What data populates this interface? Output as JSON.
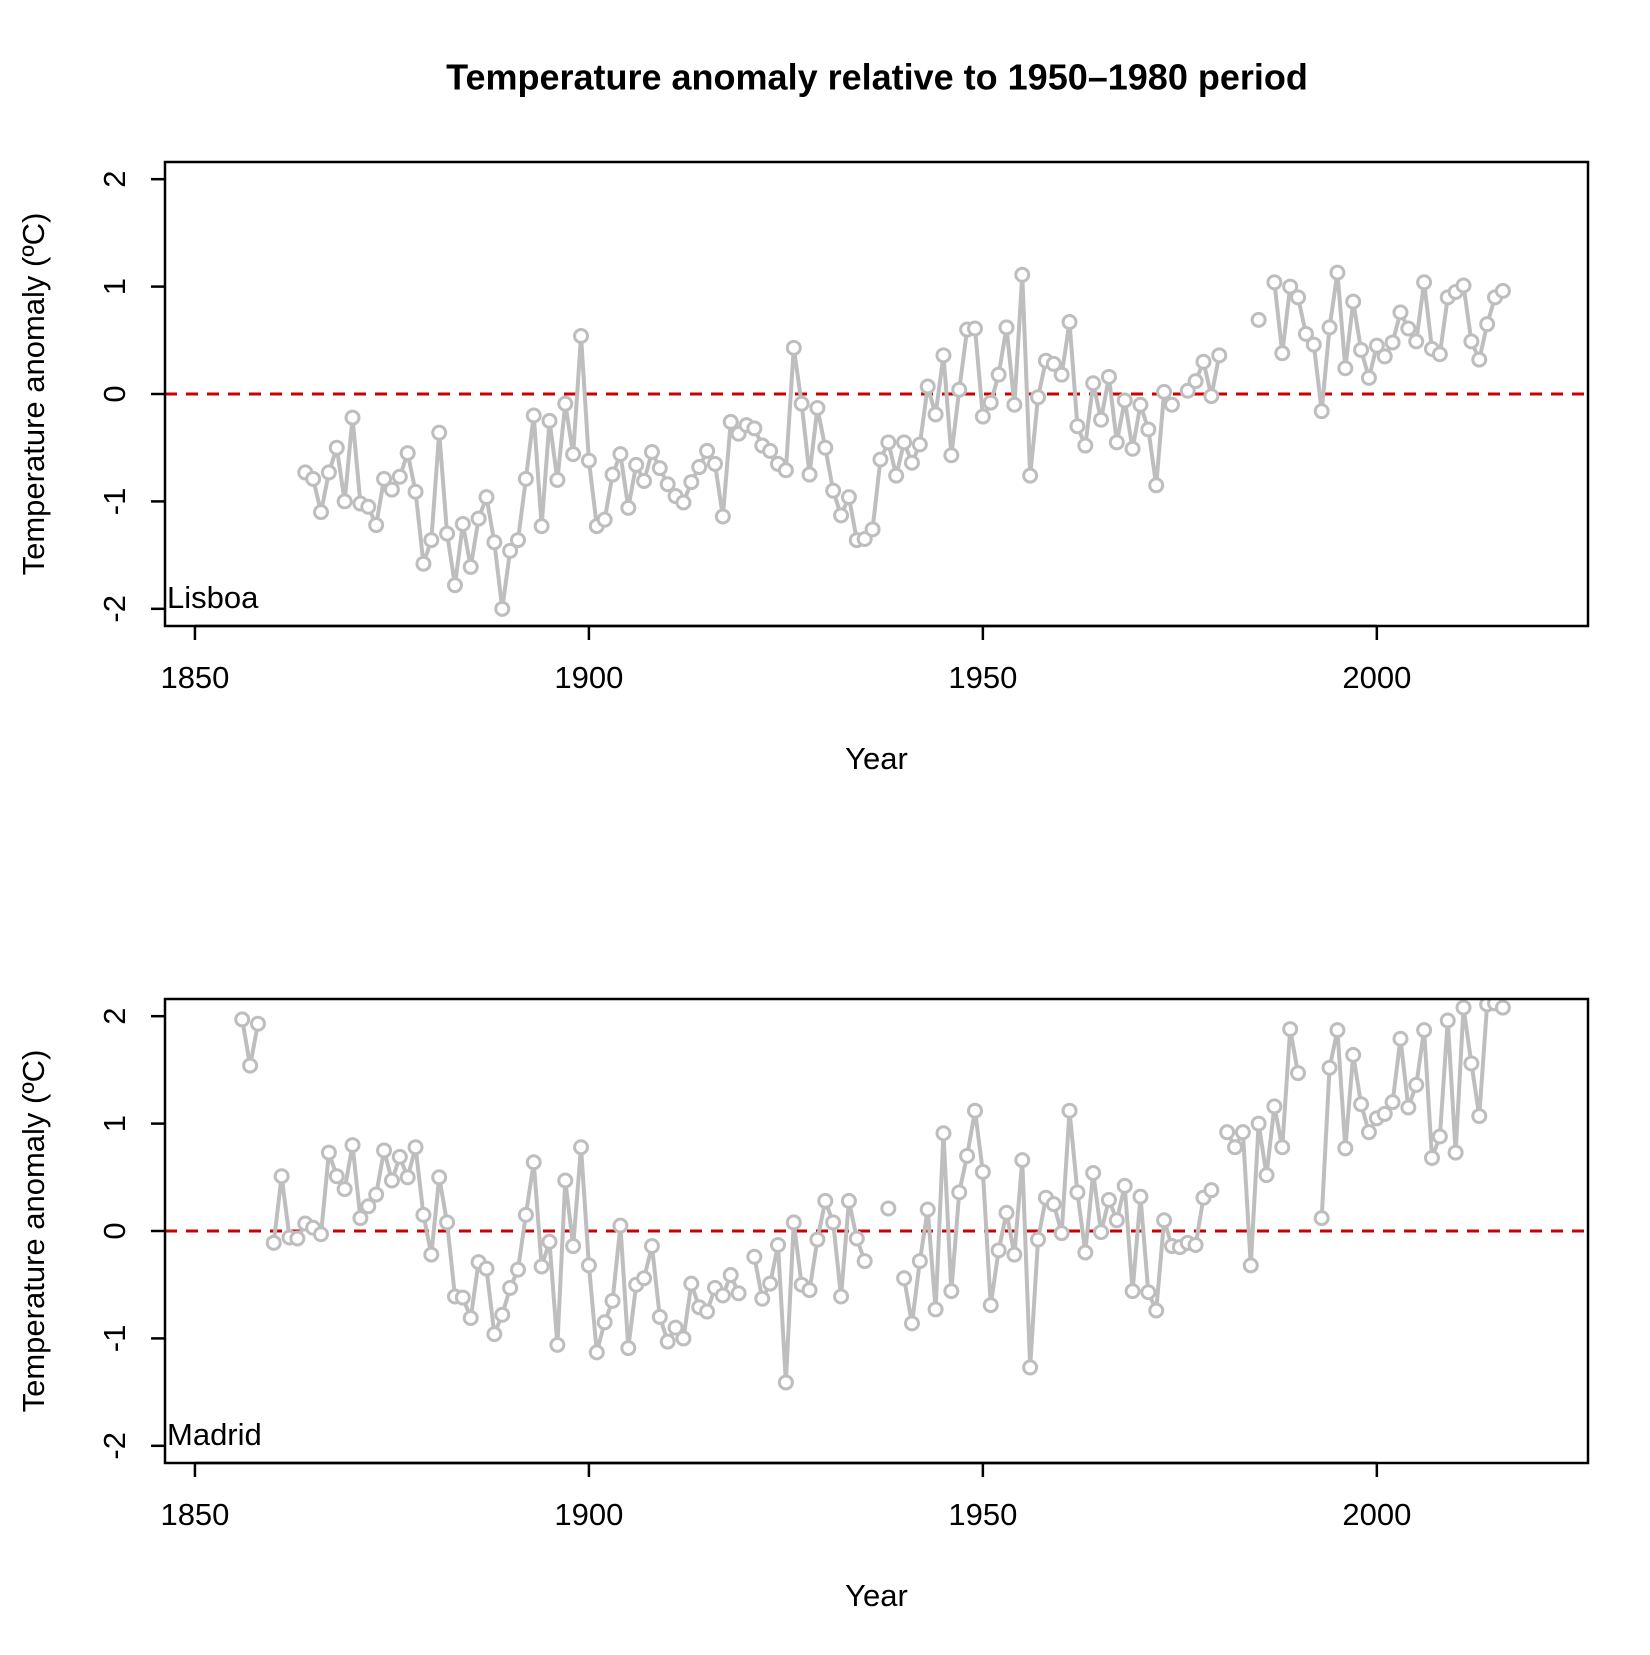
{
  "title": "Temperature anomaly relative to 1950–1980 period",
  "chart_data": [
    {
      "type": "line",
      "annotation": "Lisboa",
      "xlabel": "Year",
      "ylabel": "Temperature anomaly (ºC)",
      "xlim": [
        1846.2,
        2026.8
      ],
      "ylim": [
        -2.16,
        2.16
      ],
      "xticks": [
        1850,
        1900,
        1950,
        2000
      ],
      "yticks": [
        -2,
        -1,
        0,
        1,
        2
      ],
      "reference_line": {
        "value": 0,
        "color": "#cc0000"
      },
      "x": [
        1864,
        1865,
        1866,
        1867,
        1868,
        1869,
        1870,
        1871,
        1872,
        1873,
        1874,
        1875,
        1876,
        1877,
        1878,
        1879,
        1880,
        1881,
        1882,
        1883,
        1884,
        1885,
        1886,
        1887,
        1888,
        1889,
        1890,
        1891,
        1892,
        1893,
        1894,
        1895,
        1896,
        1897,
        1898,
        1899,
        1900,
        1901,
        1902,
        1903,
        1904,
        1905,
        1906,
        1907,
        1908,
        1909,
        1910,
        1911,
        1912,
        1913,
        1914,
        1915,
        1916,
        1917,
        1918,
        1919,
        1920,
        1921,
        1922,
        1923,
        1924,
        1925,
        1926,
        1927,
        1928,
        1929,
        1930,
        1931,
        1932,
        1933,
        1934,
        1935,
        1936,
        1937,
        1938,
        1939,
        1940,
        1941,
        1942,
        1943,
        1944,
        1945,
        1946,
        1947,
        1948,
        1949,
        1950,
        1951,
        1952,
        1953,
        1954,
        1955,
        1956,
        1957,
        1958,
        1959,
        1960,
        1961,
        1962,
        1963,
        1964,
        1965,
        1966,
        1967,
        1968,
        1969,
        1970,
        1971,
        1972,
        1973,
        1974,
        1975,
        1976,
        1977,
        1978,
        1979,
        1980,
        1981,
        1982,
        1983,
        1984,
        1985,
        1986,
        1987,
        1988,
        1989,
        1990,
        1991,
        1992,
        1993,
        1994,
        1995,
        1996,
        1997,
        1998,
        1999,
        2000,
        2001,
        2002,
        2003,
        2004,
        2005,
        2006,
        2007,
        2008,
        2009,
        2010,
        2011,
        2012,
        2013,
        2014,
        2015,
        2016
      ],
      "series": [
        {
          "color": "#bebebe",
          "values": [
            -0.73,
            -0.79,
            -1.1,
            -0.73,
            -0.5,
            -1.0,
            -0.22,
            -1.02,
            -1.05,
            -1.22,
            -0.79,
            -0.89,
            -0.77,
            -0.55,
            -0.91,
            -1.58,
            -1.36,
            -0.36,
            -1.3,
            -1.78,
            -1.21,
            -1.61,
            -1.16,
            -0.96,
            -1.38,
            -2.0,
            -1.46,
            -1.36,
            -0.79,
            -0.2,
            -1.23,
            -0.25,
            -0.8,
            -0.09,
            -0.56,
            0.54,
            -0.62,
            -1.23,
            -1.17,
            -0.75,
            -0.56,
            -1.06,
            -0.66,
            -0.81,
            -0.54,
            -0.69,
            -0.84,
            -0.95,
            -1.01,
            -0.82,
            -0.68,
            -0.53,
            -0.65,
            -1.14,
            -0.26,
            -0.37,
            -0.29,
            -0.32,
            -0.48,
            -0.53,
            -0.65,
            -0.71,
            0.43,
            -0.09,
            -0.75,
            -0.13,
            -0.5,
            -0.9,
            -1.13,
            -0.96,
            -1.36,
            -1.35,
            -1.26,
            -0.61,
            -0.45,
            -0.76,
            -0.45,
            -0.64,
            -0.47,
            0.07,
            -0.19,
            0.36,
            -0.57,
            0.04,
            0.6,
            0.61,
            -0.21,
            -0.08,
            0.18,
            0.62,
            -0.1,
            1.11,
            -0.76,
            -0.03,
            0.31,
            0.28,
            0.18,
            0.67,
            -0.3,
            -0.48,
            0.1,
            -0.24,
            0.16,
            -0.45,
            -0.06,
            -0.51,
            -0.1,
            -0.33,
            -0.85,
            0.02,
            -0.1,
            null,
            0.03,
            0.12,
            0.3,
            -0.02,
            0.36,
            null,
            null,
            null,
            null,
            0.69,
            null,
            1.04,
            0.38,
            1.0,
            0.9,
            0.56,
            0.46,
            -0.16,
            0.62,
            1.13,
            0.24,
            0.86,
            0.41,
            0.15,
            0.45,
            0.35,
            0.48,
            0.76,
            0.61,
            0.49,
            1.04,
            0.42,
            0.37,
            0.9,
            0.95,
            1.01,
            0.49,
            0.32,
            0.65,
            0.9,
            0.96
          ]
        }
      ]
    },
    {
      "type": "line",
      "annotation": "Madrid",
      "xlabel": "Year",
      "ylabel": "Temperature anomaly (ºC)",
      "xlim": [
        1846.2,
        2026.8
      ],
      "ylim": [
        -2.16,
        2.16
      ],
      "xticks": [
        1850,
        1900,
        1950,
        2000
      ],
      "yticks": [
        -2,
        -1,
        0,
        1,
        2
      ],
      "reference_line": {
        "value": 0,
        "color": "#cc0000"
      },
      "x": [
        1856,
        1857,
        1858,
        1859,
        1860,
        1861,
        1862,
        1863,
        1864,
        1865,
        1866,
        1867,
        1868,
        1869,
        1870,
        1871,
        1872,
        1873,
        1874,
        1875,
        1876,
        1877,
        1878,
        1879,
        1880,
        1881,
        1882,
        1883,
        1884,
        1885,
        1886,
        1887,
        1888,
        1889,
        1890,
        1891,
        1892,
        1893,
        1894,
        1895,
        1896,
        1897,
        1898,
        1899,
        1900,
        1901,
        1902,
        1903,
        1904,
        1905,
        1906,
        1907,
        1908,
        1909,
        1910,
        1911,
        1912,
        1913,
        1914,
        1915,
        1916,
        1917,
        1918,
        1919,
        1920,
        1921,
        1922,
        1923,
        1924,
        1925,
        1926,
        1927,
        1928,
        1929,
        1930,
        1931,
        1932,
        1933,
        1934,
        1935,
        1936,
        1937,
        1938,
        1939,
        1940,
        1941,
        1942,
        1943,
        1944,
        1945,
        1946,
        1947,
        1948,
        1949,
        1950,
        1951,
        1952,
        1953,
        1954,
        1955,
        1956,
        1957,
        1958,
        1959,
        1960,
        1961,
        1962,
        1963,
        1964,
        1965,
        1966,
        1967,
        1968,
        1969,
        1970,
        1971,
        1972,
        1973,
        1974,
        1975,
        1976,
        1977,
        1978,
        1979,
        1980,
        1981,
        1982,
        1983,
        1984,
        1985,
        1986,
        1987,
        1988,
        1989,
        1990,
        1991,
        1992,
        1993,
        1994,
        1995,
        1996,
        1997,
        1998,
        1999,
        2000,
        2001,
        2002,
        2003,
        2004,
        2005,
        2006,
        2007,
        2008,
        2009,
        2010,
        2011,
        2012,
        2013,
        2014,
        2015,
        2016
      ],
      "series": [
        {
          "color": "#bebebe",
          "values": [
            1.97,
            1.54,
            1.93,
            null,
            -0.11,
            0.51,
            -0.06,
            -0.07,
            0.07,
            0.03,
            -0.03,
            0.73,
            0.51,
            0.39,
            0.8,
            0.12,
            0.23,
            0.34,
            0.75,
            0.47,
            0.69,
            0.5,
            0.78,
            0.15,
            -0.22,
            0.5,
            0.08,
            -0.61,
            -0.62,
            -0.81,
            -0.29,
            -0.35,
            -0.96,
            -0.78,
            -0.53,
            -0.36,
            0.15,
            0.64,
            -0.33,
            -0.1,
            -1.06,
            0.47,
            -0.14,
            0.78,
            -0.32,
            -1.13,
            -0.85,
            -0.65,
            0.05,
            -1.09,
            -0.5,
            -0.44,
            -0.14,
            -0.8,
            -1.03,
            -0.9,
            -1.0,
            -0.49,
            -0.71,
            -0.75,
            -0.53,
            -0.6,
            -0.41,
            -0.58,
            null,
            -0.24,
            -0.63,
            -0.49,
            -0.13,
            -1.41,
            0.08,
            -0.5,
            -0.55,
            -0.08,
            0.28,
            0.08,
            -0.61,
            0.28,
            -0.07,
            -0.28,
            null,
            null,
            0.21,
            null,
            -0.44,
            -0.86,
            -0.28,
            0.2,
            -0.73,
            0.91,
            -0.56,
            0.36,
            0.7,
            1.12,
            0.55,
            -0.69,
            -0.18,
            0.17,
            -0.22,
            0.66,
            -1.27,
            -0.08,
            0.31,
            0.25,
            -0.02,
            1.12,
            0.36,
            -0.2,
            0.54,
            -0.01,
            0.29,
            0.1,
            0.42,
            -0.56,
            0.32,
            -0.57,
            -0.74,
            0.1,
            -0.14,
            -0.15,
            -0.11,
            -0.13,
            0.31,
            0.38,
            null,
            0.92,
            0.78,
            0.92,
            -0.32,
            1.0,
            0.52,
            1.16,
            0.78,
            1.88,
            1.47,
            null,
            null,
            0.12,
            1.52,
            1.87,
            0.77,
            1.64,
            1.18,
            0.92,
            1.05,
            1.09,
            1.2,
            1.79,
            1.15,
            1.36,
            1.87,
            0.68,
            0.88,
            1.96,
            0.73,
            2.08,
            1.56,
            1.07,
            2.11,
            2.12,
            2.08
          ]
        }
      ]
    }
  ]
}
